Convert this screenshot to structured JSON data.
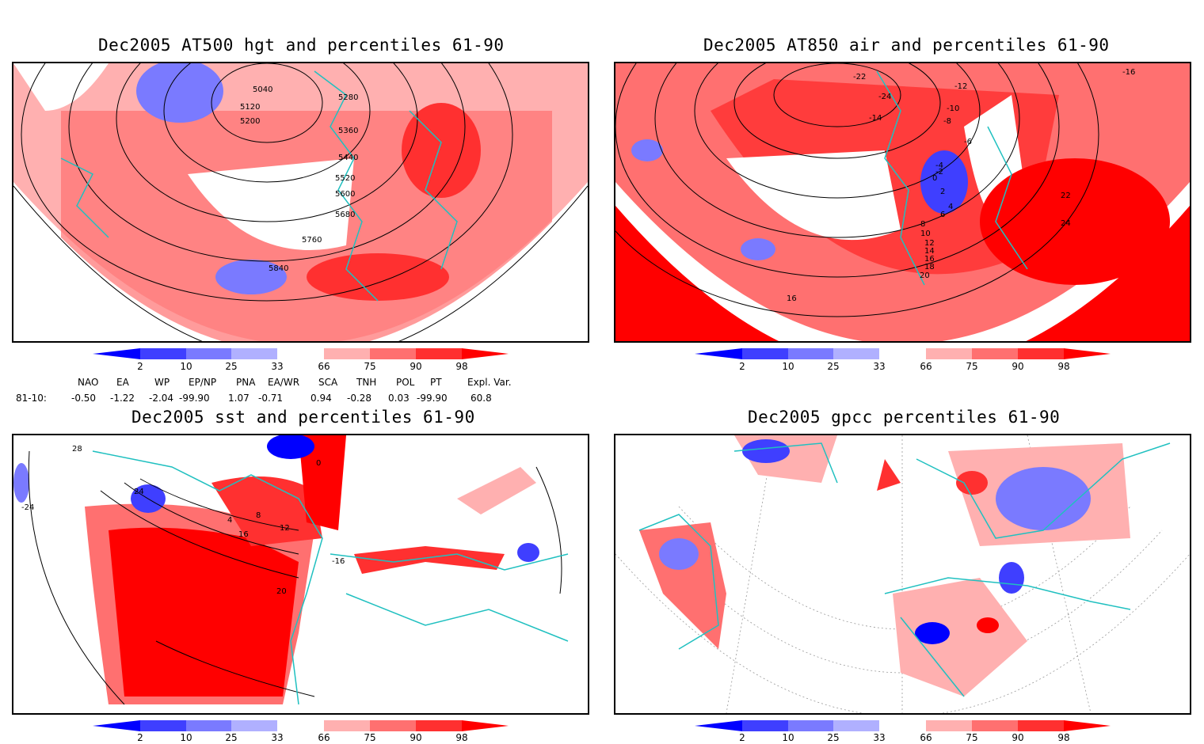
{
  "panels": [
    {
      "id": "hgt",
      "title": "Dec2005 AT500 hgt and percentiles 61-90",
      "contour_labels": [
        "5040",
        "5120",
        "5200",
        "5280",
        "5360",
        "5440",
        "5520",
        "5600",
        "5680",
        "5760",
        "5840"
      ]
    },
    {
      "id": "air",
      "title": "Dec2005 AT850 air and percentiles 61-90",
      "contour_labels": [
        "-22",
        "-24",
        "-14",
        "-12",
        "-10",
        "-8",
        "-6",
        "-4",
        "-2",
        "0",
        "2",
        "4",
        "6",
        "8",
        "10",
        "12",
        "14",
        "16",
        "18",
        "20",
        "22",
        "24",
        "-16",
        "16"
      ]
    },
    {
      "id": "sst",
      "title": "Dec2005 sst and percentiles 61-90",
      "contour_labels": [
        "28",
        "24",
        "20",
        "16",
        "12",
        "8",
        "4",
        "0",
        "-16",
        "-24"
      ]
    },
    {
      "id": "gpcc",
      "title": "Dec2005 gpcc percentiles 61-90",
      "contour_labels": []
    }
  ],
  "colorbar": {
    "ticks": [
      "2",
      "10",
      "25",
      "33",
      "66",
      "75",
      "90",
      "98"
    ],
    "colors": [
      "#0000ff",
      "#3f3fff",
      "#7a7aff",
      "#b0b0ff",
      "#ffffff",
      "#ffb0b0",
      "#ff7070",
      "#ff3030",
      "#ff0000"
    ]
  },
  "indices": {
    "row_label": "81-10:",
    "headers": [
      "NAO",
      "EA",
      "WP",
      "EP/NP",
      "PNA",
      "EA/WR",
      "SCA",
      "TNH",
      "POL",
      "PT",
      "Expl. Var."
    ],
    "values": [
      "-0.50",
      "-1.22",
      "-2.04",
      "-99.90",
      "1.07",
      "-0.71",
      "0.94",
      "-0.28",
      "0.03",
      "-99.90",
      "60.8"
    ]
  }
}
